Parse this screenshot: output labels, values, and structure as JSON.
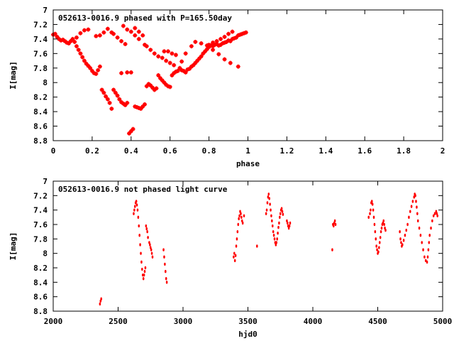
{
  "chart_data": [
    {
      "type": "scatter",
      "title": "052613-0016.9 phased with P=165.50day",
      "xlabel": "phase",
      "ylabel": "I[mag]",
      "xlim": [
        0,
        2
      ],
      "ylim": [
        8.8,
        7
      ],
      "y_inverted": true,
      "xticks": [
        "0",
        "0.2",
        "0.4",
        "0.6",
        "0.8",
        "1",
        "1.2",
        "1.4",
        "1.6",
        "1.8",
        "2"
      ],
      "yticks": [
        "7",
        "7.2",
        "7.4",
        "7.6",
        "7.8",
        "8",
        "8.2",
        "8.4",
        "8.6",
        "8.8"
      ],
      "marker_color": "#ff0000",
      "grid": false,
      "series": [
        {
          "x": [
            0.0,
            0.01,
            0.02,
            0.03,
            0.04,
            0.05,
            0.06,
            0.07,
            0.08,
            0.09,
            0.1,
            0.11,
            0.12,
            0.13,
            0.14,
            0.15,
            0.16,
            0.17,
            0.18,
            0.19,
            0.2,
            0.21,
            0.22,
            0.23,
            0.24,
            0.25,
            0.26,
            0.27,
            0.28,
            0.29,
            0.3,
            0.31,
            0.32,
            0.33,
            0.34,
            0.35,
            0.36,
            0.37,
            0.38,
            0.39,
            0.4,
            0.41,
            0.42,
            0.43,
            0.44,
            0.45,
            0.46,
            0.47,
            0.48,
            0.49,
            0.5,
            0.51,
            0.52,
            0.53,
            0.54,
            0.55,
            0.56,
            0.57,
            0.58,
            0.59,
            0.6,
            0.61,
            0.62,
            0.63,
            0.64,
            0.65,
            0.66,
            0.67,
            0.68,
            0.69,
            0.7,
            0.71,
            0.72,
            0.73,
            0.74,
            0.75,
            0.76,
            0.77,
            0.78,
            0.79,
            0.8,
            0.81,
            0.82,
            0.83,
            0.84,
            0.85,
            0.86,
            0.87,
            0.88,
            0.89,
            0.9,
            0.91,
            0.92,
            0.93,
            0.94,
            0.95,
            0.96,
            0.97,
            0.98,
            0.99,
            0.42,
            0.44,
            0.46,
            0.47,
            0.48,
            0.5,
            0.52,
            0.54,
            0.56,
            0.58,
            0.6,
            0.62,
            0.3,
            0.31,
            0.33,
            0.35,
            0.37,
            0.22,
            0.24,
            0.26,
            0.28,
            0.35,
            0.38,
            0.4,
            0.12,
            0.14,
            0.16,
            0.18,
            0.36,
            0.38,
            0.4,
            0.42,
            0.44,
            0.57,
            0.59,
            0.61,
            0.63,
            0.66,
            0.68,
            0.71,
            0.73,
            0.76,
            0.79,
            0.82,
            0.85,
            0.88,
            0.91,
            0.95,
            0.8,
            0.82,
            0.84,
            0.86,
            0.88,
            0.9,
            0.92
          ],
          "y": [
            7.34,
            7.33,
            7.37,
            7.4,
            7.42,
            7.41,
            7.43,
            7.45,
            7.46,
            7.43,
            7.4,
            7.44,
            7.5,
            7.55,
            7.6,
            7.65,
            7.7,
            7.74,
            7.77,
            7.8,
            7.84,
            7.87,
            7.88,
            7.83,
            7.78,
            8.1,
            8.14,
            8.19,
            8.23,
            8.28,
            8.36,
            8.1,
            8.14,
            8.18,
            8.23,
            8.27,
            8.29,
            8.31,
            8.28,
            8.7,
            8.67,
            8.64,
            8.33,
            8.34,
            8.35,
            8.36,
            8.33,
            8.3,
            8.05,
            8.02,
            8.04,
            8.07,
            8.1,
            8.08,
            7.9,
            7.94,
            7.97,
            8.0,
            8.03,
            8.05,
            8.06,
            7.9,
            7.87,
            7.85,
            7.84,
            7.8,
            7.83,
            7.84,
            7.86,
            7.82,
            7.81,
            7.78,
            7.76,
            7.73,
            7.7,
            7.67,
            7.64,
            7.6,
            7.57,
            7.54,
            7.51,
            7.49,
            7.5,
            7.48,
            7.47,
            7.49,
            7.48,
            7.46,
            7.45,
            7.44,
            7.42,
            7.43,
            7.4,
            7.39,
            7.38,
            7.35,
            7.34,
            7.33,
            7.32,
            7.31,
            7.25,
            7.3,
            7.35,
            7.48,
            7.5,
            7.55,
            7.6,
            7.64,
            7.66,
            7.7,
            7.73,
            7.76,
            7.31,
            7.33,
            7.38,
            7.43,
            7.47,
            7.36,
            7.35,
            7.31,
            7.26,
            7.87,
            7.86,
            7.86,
            7.38,
            7.32,
            7.28,
            7.27,
            7.22,
            7.27,
            7.3,
            7.35,
            7.4,
            7.57,
            7.57,
            7.6,
            7.62,
            7.71,
            7.6,
            7.5,
            7.44,
            7.46,
            7.49,
            7.55,
            7.61,
            7.68,
            7.73,
            7.78,
            7.48,
            7.45,
            7.43,
            7.4,
            7.37,
            7.33,
            7.3
          ]
        }
      ]
    },
    {
      "type": "scatter",
      "title": "052613-0016.9 not phased light curve",
      "xlabel": "hjd0",
      "ylabel": "I[mag]",
      "xlim": [
        2000,
        5000
      ],
      "ylim": [
        8.8,
        7
      ],
      "y_inverted": true,
      "xticks": [
        "2000",
        "2500",
        "3000",
        "3500",
        "4000",
        "4500",
        "5000"
      ],
      "yticks": [
        "7",
        "7.2",
        "7.4",
        "7.6",
        "7.8",
        "8",
        "8.2",
        "8.4",
        "8.6",
        "8.8"
      ],
      "marker_color": "#ff0000",
      "grid": false,
      "series": [
        {
          "x": [
            2360,
            2365,
            2370,
            2620,
            2625,
            2630,
            2635,
            2640,
            2645,
            2650,
            2655,
            2660,
            2665,
            2670,
            2675,
            2680,
            2685,
            2690,
            2695,
            2700,
            2705,
            2710,
            2715,
            2720,
            2725,
            2730,
            2740,
            2745,
            2750,
            2755,
            2760,
            2765,
            2850,
            2855,
            2860,
            2865,
            2870,
            2875,
            3390,
            3395,
            3400,
            3405,
            3410,
            3415,
            3420,
            3425,
            3430,
            3435,
            3440,
            3445,
            3450,
            3455,
            3460,
            3470,
            3570,
            3640,
            3645,
            3650,
            3655,
            3660,
            3665,
            3670,
            3675,
            3680,
            3685,
            3690,
            3695,
            3700,
            3705,
            3710,
            3715,
            3720,
            3725,
            3730,
            3735,
            3740,
            3745,
            3750,
            3755,
            3760,
            3765,
            3770,
            3800,
            3805,
            3810,
            3815,
            3820,
            3825,
            4150,
            4155,
            4160,
            4165,
            4170,
            4175,
            4430,
            4440,
            4445,
            4450,
            4455,
            4460,
            4465,
            4470,
            4475,
            4480,
            4485,
            4490,
            4495,
            4500,
            4505,
            4510,
            4515,
            4520,
            4525,
            4530,
            4535,
            4540,
            4545,
            4550,
            4555,
            4560,
            4670,
            4675,
            4680,
            4685,
            4690,
            4700,
            4710,
            4720,
            4730,
            4740,
            4750,
            4760,
            4770,
            4780,
            4785,
            4790,
            4795,
            4800,
            4805,
            4810,
            4820,
            4830,
            4840,
            4850,
            4860,
            4870,
            4880,
            4885,
            4890,
            4895,
            4900,
            4910,
            4920,
            4930,
            4940,
            4950,
            4955,
            4960
          ],
          "y": [
            8.7,
            8.66,
            8.63,
            7.45,
            7.4,
            7.35,
            7.3,
            7.28,
            7.33,
            7.4,
            7.5,
            7.62,
            7.75,
            7.88,
            8.0,
            8.12,
            8.22,
            8.3,
            8.35,
            8.3,
            8.25,
            8.2,
            7.62,
            7.66,
            7.7,
            7.78,
            7.85,
            7.88,
            7.92,
            7.95,
            8.0,
            8.05,
            7.95,
            8.05,
            8.15,
            8.25,
            8.35,
            8.4,
            8.05,
            8.0,
            8.1,
            8.03,
            7.9,
            7.8,
            7.7,
            7.6,
            7.52,
            7.48,
            7.42,
            7.45,
            7.5,
            7.55,
            7.58,
            7.48,
            7.9,
            7.45,
            7.4,
            7.3,
            7.22,
            7.18,
            7.24,
            7.32,
            7.4,
            7.48,
            7.55,
            7.62,
            7.7,
            7.75,
            7.8,
            7.85,
            7.88,
            7.85,
            7.8,
            7.72,
            7.64,
            7.58,
            7.5,
            7.45,
            7.4,
            7.38,
            7.42,
            7.46,
            7.55,
            7.58,
            7.62,
            7.65,
            7.62,
            7.58,
            7.95,
            7.6,
            7.62,
            7.58,
            7.55,
            7.6,
            7.5,
            7.45,
            7.4,
            7.3,
            7.28,
            7.32,
            7.4,
            7.5,
            7.6,
            7.7,
            7.8,
            7.9,
            7.95,
            8.0,
            7.98,
            7.92,
            7.85,
            7.78,
            7.7,
            7.65,
            7.6,
            7.58,
            7.55,
            7.6,
            7.65,
            7.68,
            7.7,
            7.8,
            7.85,
            7.9,
            7.88,
            7.82,
            7.75,
            7.68,
            7.6,
            7.5,
            7.42,
            7.35,
            7.28,
            7.22,
            7.18,
            7.2,
            7.28,
            7.36,
            7.45,
            7.55,
            7.65,
            7.75,
            7.85,
            7.95,
            8.05,
            8.1,
            8.12,
            8.05,
            7.95,
            7.85,
            7.75,
            7.65,
            7.55,
            7.48,
            7.45,
            7.42,
            7.45,
            7.48
          ]
        }
      ]
    }
  ]
}
